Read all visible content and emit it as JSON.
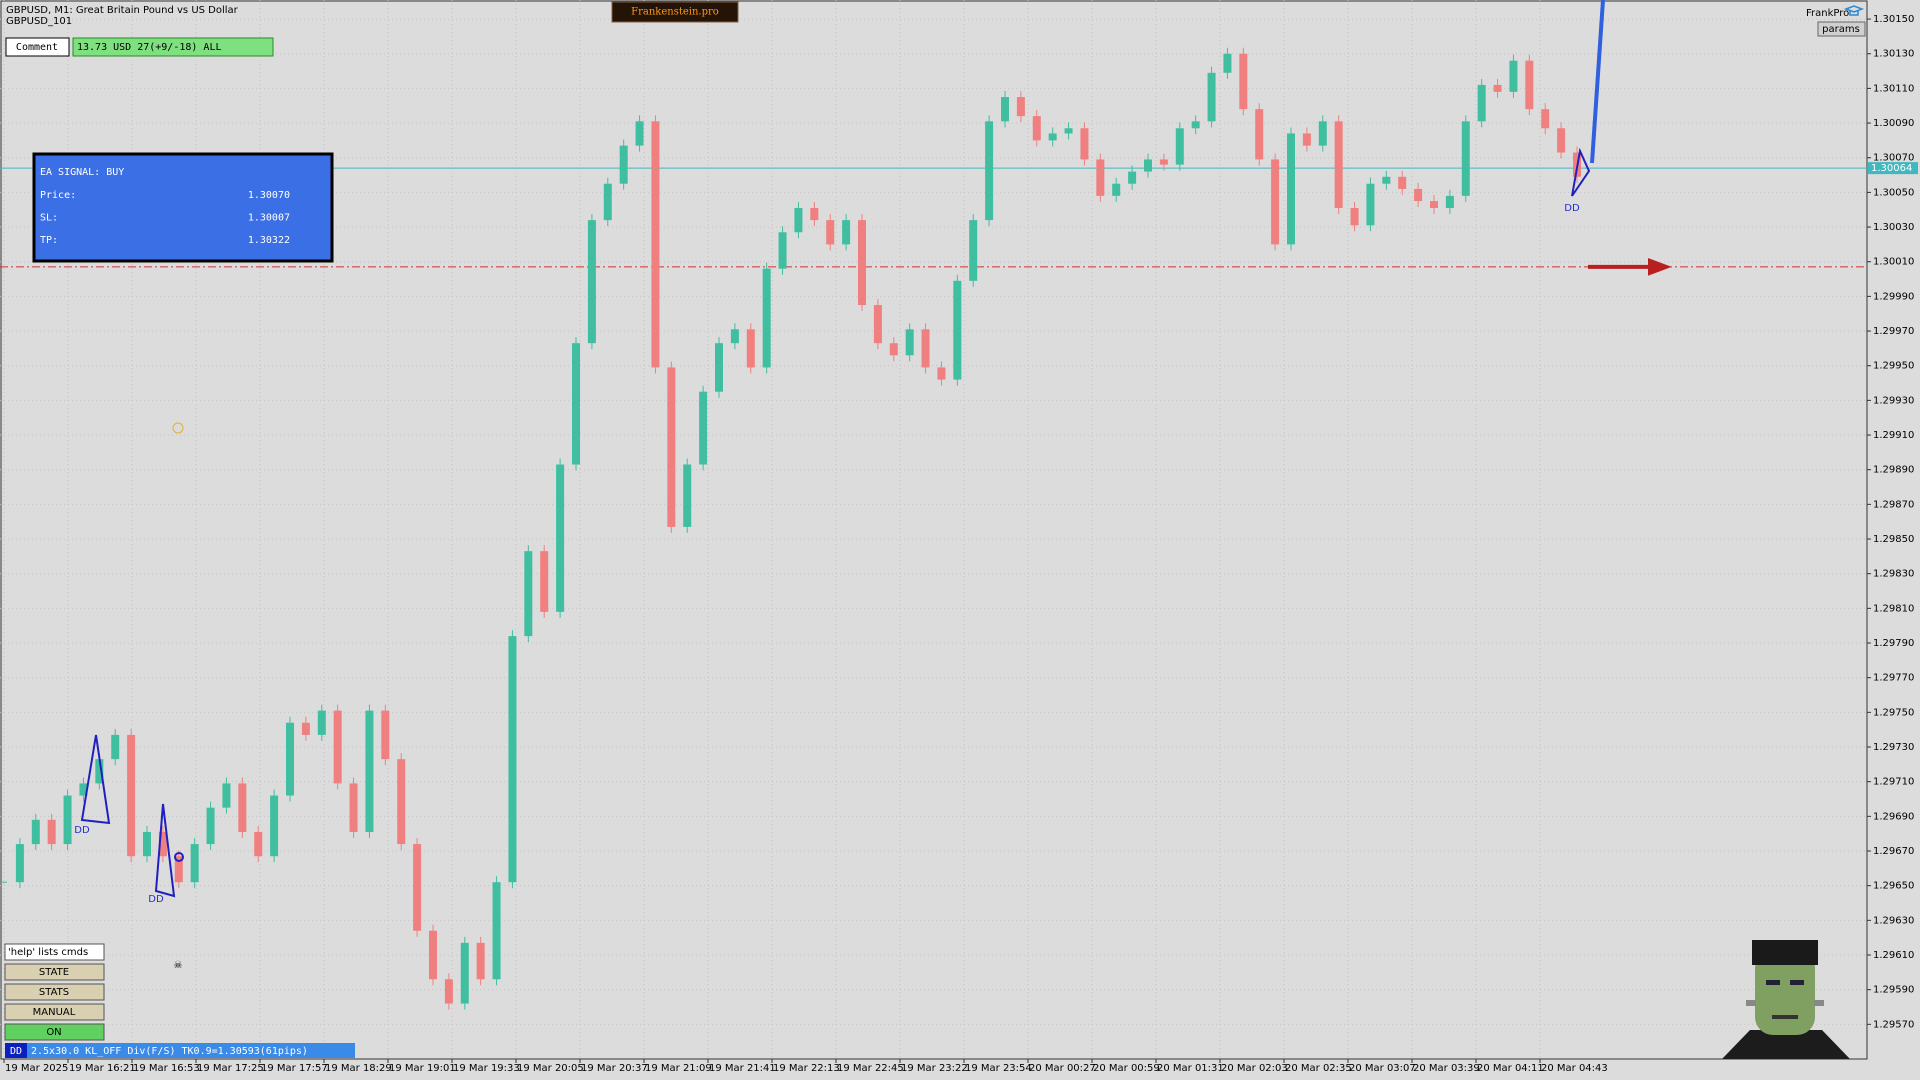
{
  "header": {
    "symbol": "GBPUSD, M1:  Great Britain Pound vs US Dollar",
    "account": "GBPUSD_101",
    "brand": "Frankenstein.pro",
    "user": "FrankPro",
    "params": "params"
  },
  "comment": {
    "label": "Comment",
    "value": "13.73 USD 27(+9/-18) ALL"
  },
  "signal": {
    "title": "EA SIGNAL: BUY",
    "rows": [
      {
        "label": "Price:",
        "value": {
          "value": 1.3007,
          "label": "1.30070"
        }
      },
      {
        "label": "SL:",
        "value": 1.30007
      },
      {
        "label": "TP:",
        "value": 1.30322
      }
    ]
  },
  "markers": [
    {
      "label": "DD"
    },
    {
      "label": "DD"
    },
    {
      "label": "DD"
    }
  ],
  "buttons": [
    "'help' lists cmds",
    "STATE",
    "STATS",
    "MANUAL",
    "ON"
  ],
  "status": {
    "tag": "DD",
    "text": "2.5x30.0 KL_OFF Div(F/S) TK0.9=1.30593(61pips)"
  },
  "chart_data": {
    "type": "candlestick",
    "up_color": "#3fbf9f",
    "down_color": "#f07f7f",
    "grid": true,
    "current_price": {
      "value": 1.30064,
      "label": "1.30064"
    },
    "ylim": [
      1.2955,
      1.30161
    ],
    "yticks": [
      {
        "value": 1.2957,
        "label": "1.29570"
      },
      {
        "value": 1.2959,
        "label": "1.29590"
      },
      {
        "value": 1.2961,
        "label": "1.29610"
      },
      {
        "value": 1.2963,
        "label": "1.29630"
      },
      {
        "value": 1.2965,
        "label": "1.29650"
      },
      {
        "value": 1.2967,
        "label": "1.29670"
      },
      {
        "value": 1.2969,
        "label": "1.29690"
      },
      {
        "value": 1.2971,
        "label": "1.29710"
      },
      {
        "value": 1.2973,
        "label": "1.29730"
      },
      {
        "value": 1.2975,
        "label": "1.29750"
      },
      {
        "value": 1.2977,
        "label": "1.29770"
      },
      {
        "value": 1.2979,
        "label": "1.29790"
      },
      {
        "value": 1.2981,
        "label": "1.29810"
      },
      {
        "value": 1.2983,
        "label": "1.29830"
      },
      {
        "value": 1.2985,
        "label": "1.29850"
      },
      {
        "value": 1.2987,
        "label": "1.29870"
      },
      {
        "value": 1.2989,
        "label": "1.29890"
      },
      {
        "value": 1.2991,
        "label": "1.29910"
      },
      {
        "value": 1.2993,
        "label": "1.29930"
      },
      {
        "value": 1.2995,
        "label": "1.29950"
      },
      {
        "value": 1.2997,
        "label": "1.29970"
      },
      {
        "value": 1.2999,
        "label": "1.29990"
      },
      {
        "value": 1.3001,
        "label": "1.30010"
      },
      {
        "value": 1.3003,
        "label": "1.30030"
      },
      {
        "value": 1.3005,
        "label": "1.30050"
      },
      {
        "value": 1.3007,
        "label": "1.30070"
      },
      {
        "value": 1.3009,
        "label": "1.30090"
      },
      {
        "value": 1.3011,
        "label": "1.30110"
      },
      {
        "value": 1.3013,
        "label": "1.30130"
      },
      {
        "value": 1.3015,
        "label": "1.30150"
      }
    ],
    "x_labels": [
      "19 Mar 2025",
      "19 Mar 16:21",
      "19 Mar 16:53",
      "19 Mar 17:25",
      "19 Mar 17:57",
      "19 Mar 18:29",
      "19 Mar 19:01",
      "19 Mar 19:33",
      "19 Mar 20:05",
      "19 Mar 20:37",
      "19 Mar 21:09",
      "19 Mar 21:41",
      "19 Mar 22:13",
      "19 Mar 22:45",
      "19 Mar 23:22",
      "19 Mar 23:54",
      "20 Mar 00:27",
      "20 Mar 00:59",
      "20 Mar 01:31",
      "20 Mar 02:03",
      "20 Mar 02:35",
      "20 Mar 03:07",
      "20 Mar 03:39",
      "20 Mar 04:11",
      "20 Mar 04:43"
    ],
    "values": [
      1.29652,
      1.29674,
      1.29688,
      1.29674,
      1.29702,
      1.29709,
      1.29723,
      1.29737,
      1.29667,
      1.29681,
      1.29667,
      1.29652,
      1.29674,
      1.29695,
      1.29709,
      1.29681,
      1.29667,
      1.29702,
      1.29744,
      1.29737,
      1.29751,
      1.29709,
      1.29681,
      1.29751,
      1.29723,
      1.29674,
      1.29624,
      1.29596,
      1.29582,
      1.29617,
      1.29596,
      1.29652,
      1.29794,
      1.29843,
      1.29808,
      1.29893,
      1.29963,
      1.30034,
      1.30055,
      1.30077,
      1.30091,
      1.29949,
      1.29857,
      1.29893,
      1.29935,
      1.29963,
      1.29971,
      1.29949,
      1.30006,
      1.30027,
      1.30041,
      1.30034,
      1.3002,
      1.30034,
      1.29985,
      1.29963,
      1.29956,
      1.29971,
      1.29949,
      1.29942,
      1.29999,
      1.30034,
      1.30091,
      1.30105,
      1.30094,
      1.3008,
      1.30084,
      1.30087,
      1.30069,
      1.30048,
      1.30055,
      1.30062,
      1.30069,
      1.30066,
      1.30087,
      1.30091,
      1.30119,
      1.3013,
      1.30098,
      1.30069,
      1.3002,
      1.30084,
      1.30077,
      1.30091,
      1.30041,
      1.30031,
      1.30055,
      1.30059,
      1.30052,
      1.30045,
      1.30041,
      1.30048,
      1.30091,
      1.30112,
      1.30108,
      1.30126,
      1.30098,
      1.30087,
      1.30073,
      1.30059
    ]
  }
}
